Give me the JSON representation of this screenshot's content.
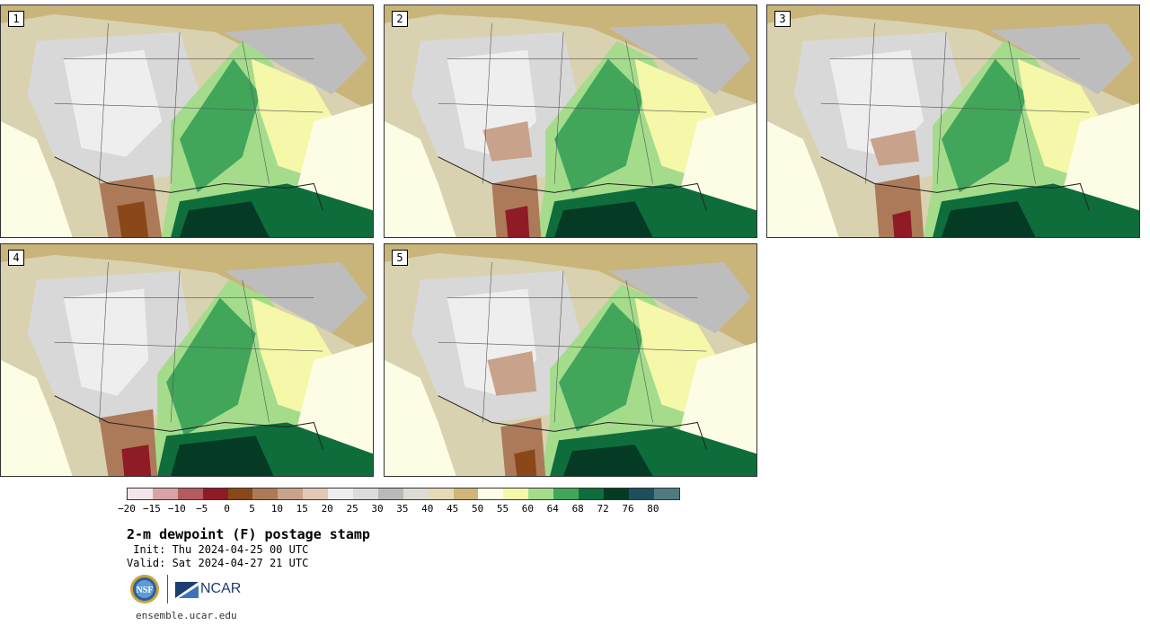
{
  "panels": [
    {
      "label": "1"
    },
    {
      "label": "2"
    },
    {
      "label": "3"
    },
    {
      "label": "4"
    },
    {
      "label": "5"
    }
  ],
  "colorbar": {
    "colors": [
      "#f4e6e8",
      "#d7a3a6",
      "#b45b60",
      "#8e1b25",
      "#8a4718",
      "#ad7a59",
      "#c8a28a",
      "#e2c8b5",
      "#eeeeee",
      "#dcdcdc",
      "#b9b9b9",
      "#dcdcd3",
      "#e5d9b6",
      "#d0b578",
      "#fdfde5",
      "#f5f7a9",
      "#a4dc8c",
      "#41a65a",
      "#0e6d3b",
      "#053b24",
      "#1e4f5e",
      "#4f7b7e"
    ],
    "tick_labels": [
      "−20",
      "−15",
      "−10",
      "−5",
      "0",
      "5",
      "10",
      "15",
      "20",
      "25",
      "30",
      "35",
      "40",
      "45",
      "50",
      "55",
      "60",
      "64",
      "68",
      "72",
      "76",
      "80"
    ]
  },
  "text": {
    "title": "2-m dewpoint (F) postage stamp",
    "init": " Init: Thu 2024-04-25 00 UTC",
    "valid": "Valid: Sat 2024-04-27 21 UTC",
    "footer_url": "ensemble.ucar.edu",
    "ncar_logo": "NCAR",
    "nsf_logo": "NSF"
  },
  "icons": {
    "nsf": "nsf-logo-icon",
    "ncar": "ncar-logo-icon"
  }
}
